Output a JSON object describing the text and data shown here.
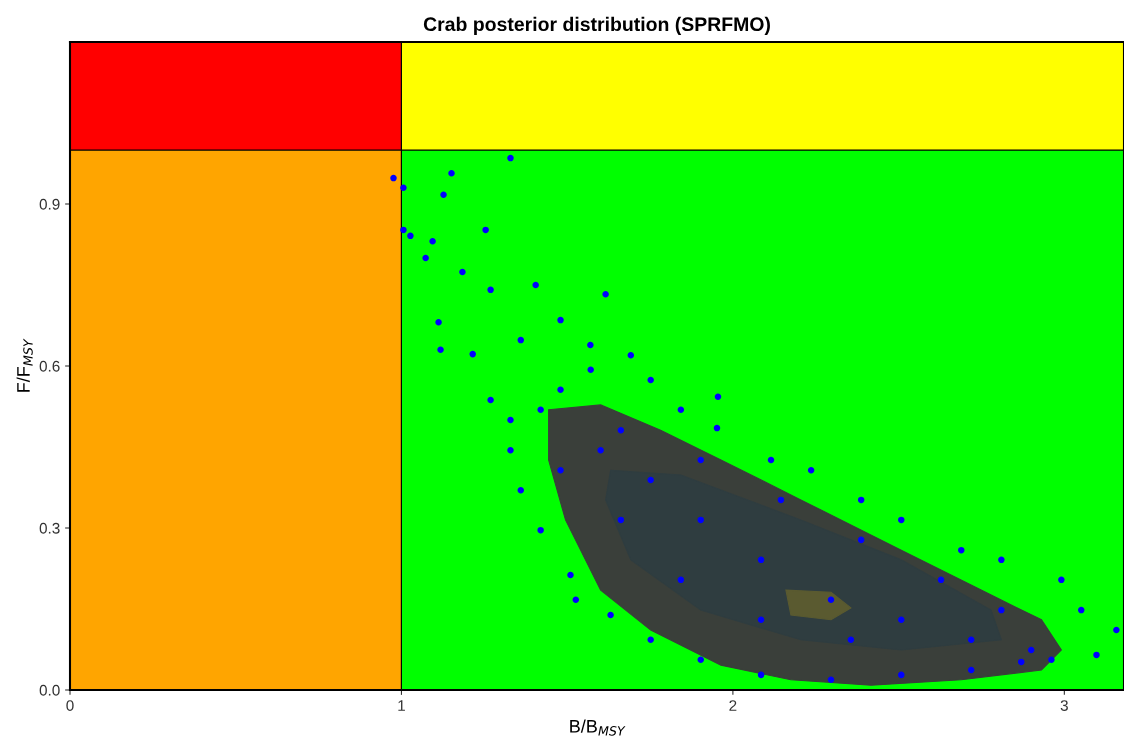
{
  "chart_data": {
    "type": "scatter",
    "title": "Crab posterior distribution (SPRFMO)",
    "xlabel": "B/B$_{MSY}$",
    "ylabel": "F/F$_{MSY}$",
    "xlim": [
      0,
      3.18
    ],
    "xticks": [
      0,
      1,
      2,
      3
    ],
    "ylim": [
      0,
      1.2
    ],
    "yticks": [
      {
        "value": 0,
        "label": "0.0"
      },
      {
        "value": 0.3,
        "label": "0.3"
      },
      {
        "value": 0.6,
        "label": "0.6"
      },
      {
        "value": 0.9,
        "label": "0.9"
      }
    ],
    "grid": false,
    "legend": false,
    "bands": [
      {
        "axis": "x",
        "from": 0,
        "to": 1,
        "color": "#ffa500"
      },
      {
        "axis": "x",
        "from": 1,
        "to": 3.18,
        "color": "#00ff00"
      },
      {
        "axis": "y",
        "from": 1,
        "to": 1.2,
        "color": "#ff0000"
      },
      {
        "axis": "y",
        "from": 1,
        "to": 1.2,
        "color": "#ffff00"
      }
    ],
    "series": [
      {
        "type": "area",
        "color": "#3a3f3a",
        "x": [
          1.444,
          1.601,
          1.782,
          1.964,
          2.205,
          2.508,
          2.749,
          2.931,
          2.991,
          2.931,
          2.689,
          2.417,
          2.175,
          1.964,
          1.752,
          1.601,
          1.495,
          1.444,
          1.444
        ],
        "values": [
          0.519,
          0.528,
          0.481,
          0.426,
          0.352,
          0.259,
          0.185,
          0.13,
          0.074,
          0.037,
          0.019,
          0.009,
          0.019,
          0.046,
          0.111,
          0.185,
          0.315,
          0.426,
          0.519
        ]
      },
      {
        "color": "#0000ff",
        "marker": "circle",
        "x": [
          0.976,
          1.006,
          1.006,
          1.027,
          1.329,
          1.151,
          1.127,
          1.094,
          1.073,
          1.112,
          1.118,
          1.184,
          1.269,
          1.405,
          1.616,
          1.254,
          1.215,
          1.36,
          1.48,
          1.57,
          1.692,
          1.955,
          1.269,
          1.329,
          1.36,
          1.42,
          1.51,
          1.526,
          1.631,
          1.752,
          1.903,
          2.085,
          2.296,
          2.508,
          2.719,
          2.87,
          2.961,
          3.097,
          3.157,
          3.051,
          2.991,
          2.81,
          2.689,
          2.508,
          2.387,
          2.236,
          2.115,
          1.952,
          1.843,
          1.752,
          1.571,
          1.48,
          1.42,
          1.329,
          1.601,
          1.752,
          1.903,
          2.085,
          2.296,
          2.508,
          2.719,
          2.9,
          1.662,
          1.843,
          2.085,
          2.356,
          1.48,
          1.662,
          1.903,
          2.145,
          2.387,
          2.628,
          2.81
        ],
        "values": [
          0.948,
          0.93,
          0.852,
          0.841,
          0.985,
          0.957,
          0.917,
          0.831,
          0.8,
          0.681,
          0.63,
          0.774,
          0.741,
          0.75,
          0.733,
          0.852,
          0.622,
          0.648,
          0.685,
          0.639,
          0.62,
          0.543,
          0.537,
          0.444,
          0.37,
          0.296,
          0.213,
          0.167,
          0.139,
          0.093,
          0.056,
          0.028,
          0.019,
          0.028,
          0.037,
          0.052,
          0.056,
          0.065,
          0.111,
          0.148,
          0.204,
          0.241,
          0.259,
          0.315,
          0.352,
          0.407,
          0.426,
          0.485,
          0.519,
          0.574,
          0.593,
          0.556,
          0.519,
          0.5,
          0.444,
          0.389,
          0.315,
          0.241,
          0.167,
          0.13,
          0.093,
          0.074,
          0.315,
          0.204,
          0.13,
          0.093,
          0.407,
          0.481,
          0.426,
          0.352,
          0.278,
          0.204,
          0.148
        ]
      },
      {
        "type": "area",
        "color": "#2f3d40",
        "x": [
          1.631,
          1.843,
          2.205,
          2.508,
          2.779,
          2.81,
          2.508,
          2.205,
          1.903,
          1.692,
          1.616,
          1.631
        ],
        "values": [
          0.407,
          0.398,
          0.315,
          0.241,
          0.148,
          0.093,
          0.074,
          0.093,
          0.148,
          0.241,
          0.352,
          0.407
        ]
      },
      {
        "type": "area",
        "color": "#5a5a30",
        "x": [
          2.16,
          2.296,
          2.356,
          2.296,
          2.175,
          2.16
        ],
        "values": [
          0.185,
          0.181,
          0.152,
          0.13,
          0.139,
          0.185
        ]
      }
    ]
  }
}
